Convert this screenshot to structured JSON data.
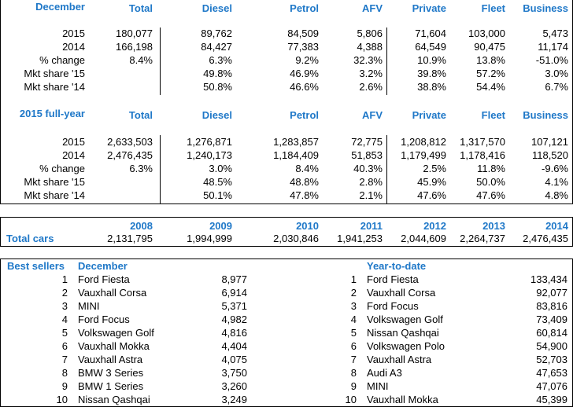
{
  "accent_color": "#1f78c8",
  "december": {
    "title": "December",
    "columns": [
      "Total",
      "Diesel",
      "Petrol",
      "AFV",
      "Private",
      "Fleet",
      "Business"
    ],
    "rows": [
      {
        "label": "2015",
        "values": [
          "180,077",
          "89,762",
          "84,509",
          "5,806",
          "71,604",
          "103,000",
          "5,473"
        ]
      },
      {
        "label": "2014",
        "values": [
          "166,198",
          "84,427",
          "77,383",
          "4,388",
          "64,549",
          "90,475",
          "11,174"
        ]
      },
      {
        "label": "% change",
        "values": [
          "8.4%",
          "6.3%",
          "9.2%",
          "32.3%",
          "10.9%",
          "13.8%",
          "-51.0%"
        ]
      },
      {
        "label": "Mkt share '15",
        "values": [
          "",
          "49.8%",
          "46.9%",
          "3.2%",
          "39.8%",
          "57.2%",
          "3.0%"
        ]
      },
      {
        "label": "Mkt share '14",
        "values": [
          "",
          "50.8%",
          "46.6%",
          "2.6%",
          "38.8%",
          "54.4%",
          "6.7%"
        ]
      }
    ]
  },
  "full_year": {
    "title": "2015 full-year",
    "columns": [
      "Total",
      "Diesel",
      "Petrol",
      "AFV",
      "Private",
      "Fleet",
      "Business"
    ],
    "rows": [
      {
        "label": "2015",
        "values": [
          "2,633,503",
          "1,276,871",
          "1,283,857",
          "72,775",
          "1,208,812",
          "1,317,570",
          "107,121"
        ]
      },
      {
        "label": "2014",
        "values": [
          "2,476,435",
          "1,240,173",
          "1,184,409",
          "51,853",
          "1,179,499",
          "1,178,416",
          "118,520"
        ]
      },
      {
        "label": "% change",
        "values": [
          "6.3%",
          "3.0%",
          "8.4%",
          "40.3%",
          "2.5%",
          "11.8%",
          "-9.6%"
        ]
      },
      {
        "label": "Mkt share '15",
        "values": [
          "",
          "48.5%",
          "48.8%",
          "2.8%",
          "45.9%",
          "50.0%",
          "4.1%"
        ]
      },
      {
        "label": "Mkt share '14",
        "values": [
          "",
          "50.1%",
          "47.8%",
          "2.1%",
          "47.6%",
          "47.6%",
          "4.8%"
        ]
      }
    ]
  },
  "history": {
    "label": "Total cars",
    "years": [
      "2008",
      "2009",
      "2010",
      "2011",
      "2012",
      "2013",
      "2014"
    ],
    "values": [
      "2,131,795",
      "1,994,999",
      "2,030,846",
      "1,941,253",
      "2,044,609",
      "2,264,737",
      "2,476,435"
    ]
  },
  "best_sellers": {
    "title": "Best sellers",
    "december_title": "December",
    "ytd_title": "Year-to-date",
    "december": [
      {
        "rank": "1",
        "model": "Ford Fiesta",
        "units": "8,977"
      },
      {
        "rank": "2",
        "model": "Vauxhall Corsa",
        "units": "6,914"
      },
      {
        "rank": "3",
        "model": "MINI",
        "units": "5,371"
      },
      {
        "rank": "4",
        "model": "Ford Focus",
        "units": "4,982"
      },
      {
        "rank": "5",
        "model": "Volkswagen Golf",
        "units": "4,816"
      },
      {
        "rank": "6",
        "model": "Vauxhall Mokka",
        "units": "4,404"
      },
      {
        "rank": "7",
        "model": "Vauxhall Astra",
        "units": "4,075"
      },
      {
        "rank": "8",
        "model": "BMW 3 Series",
        "units": "3,750"
      },
      {
        "rank": "9",
        "model": "BMW 1 Series",
        "units": "3,260"
      },
      {
        "rank": "10",
        "model": "Nissan Qashqai",
        "units": "3,249"
      }
    ],
    "ytd": [
      {
        "rank": "1",
        "model": "Ford Fiesta",
        "units": "133,434"
      },
      {
        "rank": "2",
        "model": "Vauxhall Corsa",
        "units": "92,077"
      },
      {
        "rank": "3",
        "model": "Ford Focus",
        "units": "83,816"
      },
      {
        "rank": "4",
        "model": "Volkswagen Golf",
        "units": "73,409"
      },
      {
        "rank": "5",
        "model": "Nissan Qashqai",
        "units": "60,814"
      },
      {
        "rank": "6",
        "model": "Volkswagen Polo",
        "units": "54,900"
      },
      {
        "rank": "7",
        "model": "Vauxhall Astra",
        "units": "52,703"
      },
      {
        "rank": "8",
        "model": "Audi A3",
        "units": "47,653"
      },
      {
        "rank": "9",
        "model": "MINI",
        "units": "47,076"
      },
      {
        "rank": "10",
        "model": "Vauxhall Mokka",
        "units": "45,399"
      }
    ]
  }
}
